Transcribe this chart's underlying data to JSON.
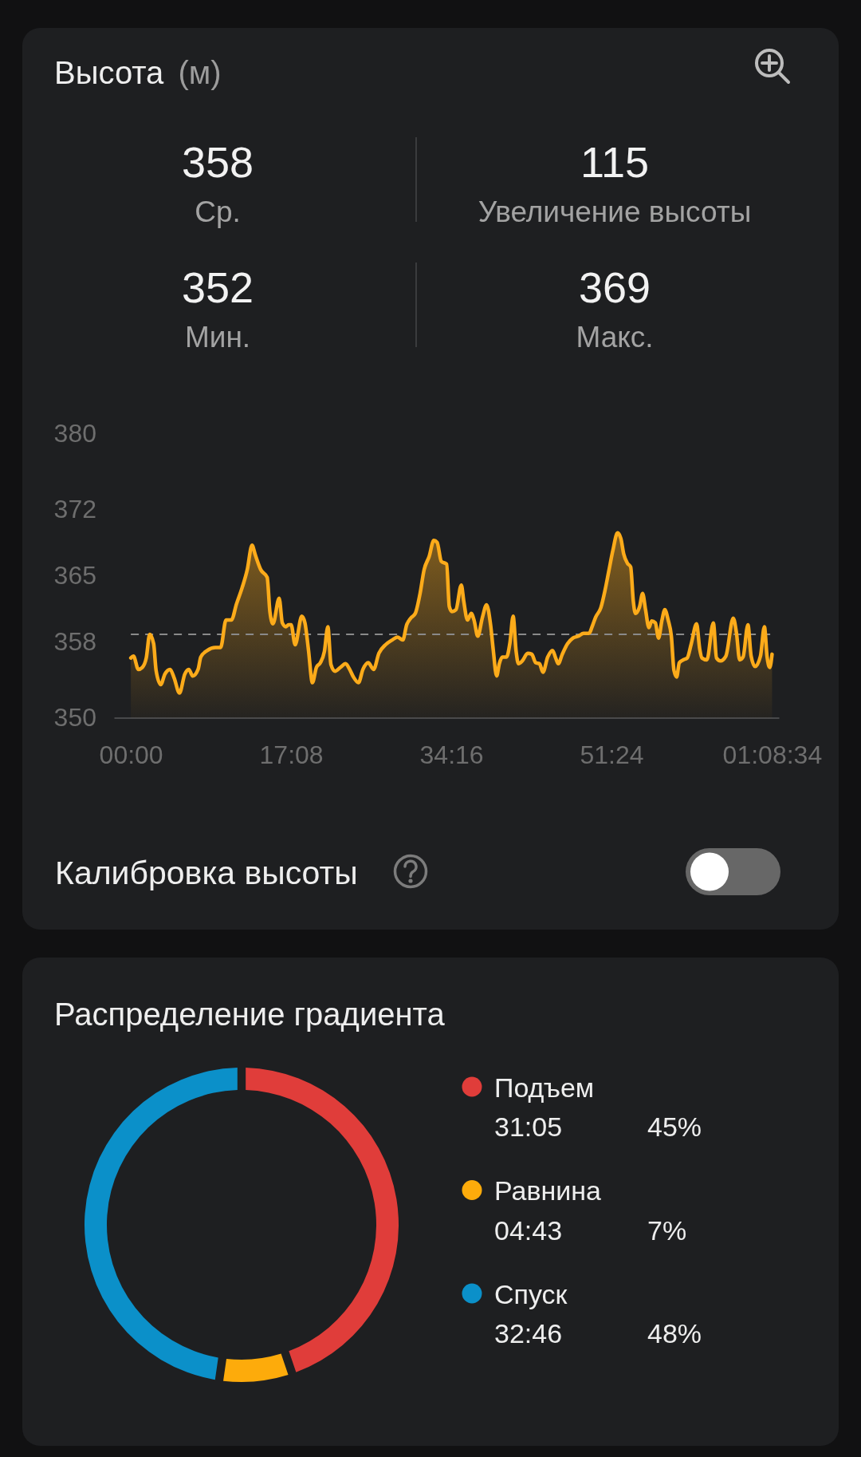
{
  "chart_data": [
    {
      "type": "area",
      "title": "Высота",
      "subtitle": "(м)",
      "annotations": [
        "358",
        "Ср.",
        "115",
        "Увеличение высоты",
        "352",
        "Мин.",
        "369",
        "Макс.",
        "Калибровка высоты"
      ],
      "x": [
        0,
        0.28,
        0.8,
        1.22,
        1.65,
        2.02,
        2.44,
        2.7,
        3.2,
        3.64,
        4.2,
        4.63,
        5.2,
        5.77,
        6.2,
        6.62,
        7.19,
        7.48,
        8.19,
        9.04,
        9.6,
        10.18,
        10.75,
        11.3,
        11.9,
        12.45,
        12.96,
        13.3,
        13.9,
        14.58,
        14.87,
        15.2,
        15.86,
        16.2,
        16.57,
        16.86,
        17.14,
        17.57,
        18.28,
        18.62,
        18.99,
        19.42,
        19.84,
        20.27,
        20.7,
        21.07,
        21.4,
        21.83,
        22.4,
        22.97,
        23.4,
        23.8,
        24.34,
        24.82,
        25.39,
        25.96,
        26.53,
        27.24,
        27.95,
        28.51,
        29.08,
        29.5,
        29.93,
        30.42,
        30.93,
        31.36,
        31.9,
        32.4,
        32.75,
        33.2,
        33.77,
        34.06,
        34.34,
        34.77,
        35.34,
        35.6,
        36.0,
        36.4,
        36.7,
        37.1,
        37.6,
        38.04,
        38.47,
        38.75,
        39.12,
        39.4,
        39.74,
        40.17,
        40.54,
        40.88,
        41.2,
        41.45,
        41.87,
        42.44,
        42.87,
        43.3,
        43.7,
        44.07,
        44.58,
        45.1,
        45.43,
        45.71,
        46.14,
        46.7,
        47.28,
        47.85,
        48.41,
        48.98,
        49.4,
        49.7,
        50.26,
        50.7,
        51.1,
        51.54,
        52.05,
        52.4,
        52.7,
        53.1,
        53.45,
        53.73,
        53.96,
        54.4,
        54.73,
        55.04,
        55.4,
        55.7,
        56.09,
        56.43,
        56.8,
        57.1,
        57.46,
        57.8,
        58.08,
        58.37,
        58.65,
        59.08,
        59.5,
        59.93,
        60.5,
        60.84,
        61.07,
        61.6,
        62.29,
        62.63,
        63.05,
        63.63,
        64.42,
        64.77,
        65.1,
        65.47,
        65.99,
        66.33,
        66.76,
        67.33,
        67.75,
        68.04,
        68.32,
        68.57
      ],
      "values": [
        356.3,
        356.5,
        355.1,
        355.3,
        356.3,
        358.8,
        357.8,
        355.0,
        353.5,
        354.6,
        355.1,
        354.2,
        352.6,
        354.6,
        355.1,
        354.4,
        355.1,
        356.4,
        357.1,
        357.4,
        357.4,
        360.3,
        360.3,
        362.0,
        363.7,
        365.6,
        368.2,
        367.2,
        365.6,
        364.8,
        361.2,
        359.9,
        362.6,
        360.0,
        359.6,
        359.8,
        359.8,
        357.7,
        360.7,
        360.0,
        357.2,
        353.7,
        355.3,
        355.8,
        357.0,
        359.6,
        355.6,
        354.9,
        355.3,
        355.7,
        355.1,
        354.3,
        353.7,
        355.1,
        355.8,
        355.1,
        356.8,
        357.7,
        358.2,
        358.5,
        358.2,
        359.8,
        360.5,
        361.0,
        363.1,
        365.6,
        367.0,
        368.7,
        368.5,
        366.5,
        366.2,
        361.7,
        361.2,
        361.4,
        364.0,
        362.3,
        360.3,
        361.0,
        360.3,
        358.6,
        360.6,
        361.9,
        359.8,
        357.2,
        354.4,
        355.7,
        356.4,
        356.4,
        357.9,
        360.7,
        357.0,
        355.7,
        356.0,
        356.8,
        356.7,
        355.8,
        355.7,
        354.8,
        356.4,
        357.1,
        356.3,
        355.7,
        356.7,
        357.8,
        358.4,
        358.6,
        358.9,
        358.9,
        359.8,
        360.6,
        361.6,
        363.4,
        365.4,
        367.6,
        369.5,
        368.9,
        367.3,
        366.3,
        365.9,
        362.3,
        361.0,
        361.7,
        363.1,
        361.4,
        359.5,
        360.2,
        360.0,
        358.4,
        360.3,
        361.4,
        360.3,
        358.6,
        355.0,
        354.3,
        355.8,
        356.1,
        356.3,
        357.8,
        359.9,
        357.2,
        356.3,
        356.1,
        360.0,
        356.3,
        356.0,
        356.5,
        360.5,
        358.9,
        356.1,
        356.4,
        359.8,
        356.5,
        355.4,
        356.5,
        359.6,
        356.4,
        355.3,
        356.7
      ],
      "color": "#fcab1a",
      "xlim": [
        -1.8,
        69.3
      ],
      "xticks": [
        {
          "value": 0,
          "label": "00:00"
        },
        {
          "value": 17.133,
          "label": "17:08"
        },
        {
          "value": 34.267,
          "label": "34:16"
        },
        {
          "value": 51.4,
          "label": "51:24"
        },
        {
          "value": 68.567,
          "label": "01:08:34"
        }
      ],
      "ylim": [
        350,
        380
      ],
      "yticks": [
        350,
        358,
        365,
        372,
        380
      ],
      "ref_lines": [
        {
          "axis": "y",
          "value": 358.8,
          "color": "#8a8a8a",
          "line_style": "dashed"
        }
      ]
    },
    {
      "type": "donut",
      "title": "Распределение градиента",
      "categories": [
        "Подъем",
        "Равнина",
        "Спуск"
      ],
      "values": [
        45,
        7,
        48
      ],
      "colors": [
        "#e03d3a",
        "#fdab0b",
        "#0b90c9"
      ],
      "annotations": [
        "31:05",
        "45%",
        "04:43",
        "7%",
        "32:46",
        "48%"
      ],
      "legend": "right"
    }
  ]
}
